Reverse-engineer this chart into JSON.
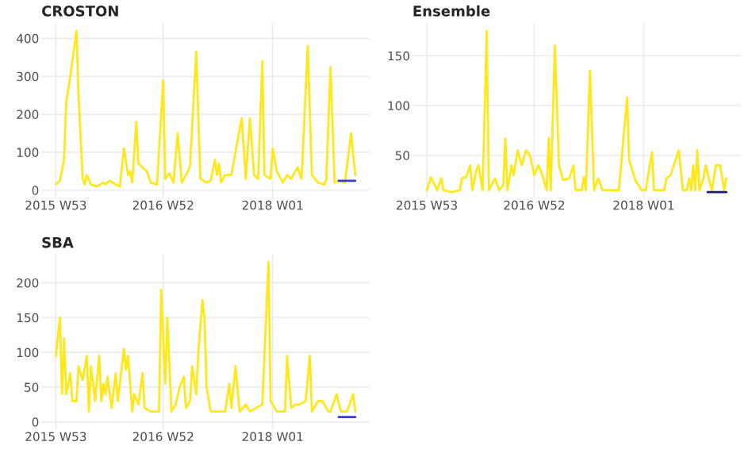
{
  "chart_data": [
    {
      "type": "line",
      "title": "CROSTON",
      "xlim": [
        "2015-11-09",
        "2018-11-26"
      ],
      "ylim": [
        -21,
        441
      ],
      "yticks": [
        0,
        100,
        200,
        300,
        400
      ],
      "xticks": [
        {
          "value": "2015-12-28",
          "label": "2015 W53"
        },
        {
          "value": "2016-12-26",
          "label": "2016 W52"
        },
        {
          "value": "2018-01-01",
          "label": "2018 W01"
        }
      ],
      "grid": true,
      "series": [
        {
          "color": "#ffe81a",
          "x": [
            "2015-12-28",
            "2016-01-11",
            "2016-01-25",
            "2016-02-01",
            "2016-02-15",
            "2016-03-07",
            "2016-03-14",
            "2016-03-28",
            "2016-04-04",
            "2016-04-11",
            "2016-04-25",
            "2016-05-16",
            "2016-06-06",
            "2016-06-13",
            "2016-06-27",
            "2016-07-18",
            "2016-08-01",
            "2016-08-15",
            "2016-08-29",
            "2016-09-05",
            "2016-09-12",
            "2016-09-26",
            "2016-10-03",
            "2016-10-31",
            "2016-11-14",
            "2016-12-05",
            "2016-12-26",
            "2017-01-02",
            "2017-01-16",
            "2017-01-30",
            "2017-02-13",
            "2017-02-27",
            "2017-03-20",
            "2017-03-27",
            "2017-04-17",
            "2017-05-01",
            "2017-05-22",
            "2017-06-05",
            "2017-06-19",
            "2017-06-26",
            "2017-07-03",
            "2017-07-10",
            "2017-07-24",
            "2017-08-14",
            "2017-08-28",
            "2017-09-18",
            "2017-10-02",
            "2017-10-16",
            "2017-10-30",
            "2017-11-13",
            "2017-11-27",
            "2017-12-04",
            "2017-12-25",
            "2018-01-01",
            "2018-01-15",
            "2018-02-05",
            "2018-02-19",
            "2018-03-05",
            "2018-03-26",
            "2018-04-09",
            "2018-04-30",
            "2018-05-14",
            "2018-06-04",
            "2018-06-25",
            "2018-07-02",
            "2018-07-16",
            "2018-07-30",
            "2018-08-13",
            "2018-09-03",
            "2018-09-24",
            "2018-10-08"
          ],
          "values": [
            15,
            25,
            80,
            230,
            300,
            420,
            250,
            30,
            15,
            40,
            15,
            10,
            20,
            15,
            25,
            15,
            10,
            110,
            40,
            50,
            20,
            180,
            70,
            50,
            20,
            15,
            290,
            30,
            45,
            20,
            150,
            20,
            50,
            65,
            365,
            30,
            20,
            25,
            80,
            40,
            70,
            20,
            40,
            40,
            100,
            190,
            30,
            190,
            40,
            30,
            340,
            40,
            30,
            110,
            50,
            20,
            40,
            30,
            60,
            30,
            380,
            40,
            20,
            15,
            30,
            325,
            20,
            25,
            20,
            150,
            40
          ]
        },
        {
          "color": "#3a3ad6",
          "x": [
            "2018-08-13",
            "2018-10-08"
          ],
          "values": [
            25,
            25
          ]
        }
      ]
    },
    {
      "type": "line",
      "title": "Ensemble",
      "xlim": [
        "2015-11-09",
        "2018-11-26"
      ],
      "ylim": [
        7,
        183
      ],
      "yticks": [
        50,
        100,
        150
      ],
      "xticks": [
        {
          "value": "2015-12-28",
          "label": "2015 W53"
        },
        {
          "value": "2016-12-26",
          "label": "2016 W52"
        },
        {
          "value": "2018-01-01",
          "label": "2018 W01"
        }
      ],
      "grid": true,
      "series": [
        {
          "color": "#ffe81a",
          "x": [
            "2015-12-28",
            "2016-01-11",
            "2016-02-01",
            "2016-02-15",
            "2016-02-22",
            "2016-03-21",
            "2016-04-18",
            "2016-04-25",
            "2016-05-09",
            "2016-05-23",
            "2016-05-30",
            "2016-06-13",
            "2016-06-20",
            "2016-07-04",
            "2016-07-18",
            "2016-07-25",
            "2016-08-15",
            "2016-08-29",
            "2016-09-12",
            "2016-09-19",
            "2016-09-26",
            "2016-10-10",
            "2016-10-17",
            "2016-10-31",
            "2016-11-14",
            "2016-11-28",
            "2016-12-12",
            "2016-12-26",
            "2017-01-09",
            "2017-01-23",
            "2017-02-06",
            "2017-02-13",
            "2017-02-20",
            "2017-03-06",
            "2017-03-20",
            "2017-04-03",
            "2017-04-24",
            "2017-05-08",
            "2017-05-15",
            "2017-06-05",
            "2017-06-12",
            "2017-06-19",
            "2017-07-03",
            "2017-07-17",
            "2017-07-31",
            "2017-08-14",
            "2017-09-04",
            "2017-10-09",
            "2017-11-06",
            "2017-11-13",
            "2017-12-04",
            "2017-12-25",
            "2018-01-08",
            "2018-01-29",
            "2018-02-05",
            "2018-03-12",
            "2018-03-19",
            "2018-04-02",
            "2018-04-30",
            "2018-05-14",
            "2018-05-28",
            "2018-06-04",
            "2018-06-11",
            "2018-06-18",
            "2018-06-25",
            "2018-07-02",
            "2018-07-09",
            "2018-07-23",
            "2018-07-30",
            "2018-08-20",
            "2018-09-03",
            "2018-09-17",
            "2018-10-01",
            "2018-10-08"
          ],
          "values": [
            15,
            28,
            15,
            27,
            15,
            13,
            15,
            27,
            28,
            40,
            15,
            35,
            40,
            15,
            175,
            15,
            27,
            15,
            20,
            67,
            15,
            40,
            30,
            55,
            40,
            55,
            50,
            30,
            40,
            30,
            15,
            67,
            15,
            160,
            40,
            25,
            27,
            40,
            15,
            15,
            28,
            15,
            135,
            15,
            27,
            15,
            15,
            15,
            108,
            45,
            25,
            15,
            15,
            53,
            15,
            15,
            27,
            30,
            55,
            15,
            15,
            27,
            15,
            40,
            15,
            55,
            15,
            27,
            40,
            15,
            40,
            40,
            15,
            27
          ]
        },
        {
          "color": "#1c1c6b",
          "x": [
            "2018-08-06",
            "2018-10-08"
          ],
          "values": [
            13,
            13
          ]
        }
      ]
    },
    {
      "type": "line",
      "title": "SBA",
      "xlim": [
        "2015-11-09",
        "2018-11-26"
      ],
      "ylim": [
        -11,
        241
      ],
      "yticks": [
        0,
        50,
        100,
        150,
        200
      ],
      "xticks": [
        {
          "value": "2015-12-28",
          "label": "2015 W53"
        },
        {
          "value": "2016-12-26",
          "label": "2016 W52"
        },
        {
          "value": "2018-01-01",
          "label": "2018 W01"
        }
      ],
      "grid": true,
      "series": [
        {
          "color": "#ffe81a",
          "x": [
            "2015-12-28",
            "2016-01-11",
            "2016-01-18",
            "2016-01-25",
            "2016-02-01",
            "2016-02-15",
            "2016-02-22",
            "2016-03-07",
            "2016-03-14",
            "2016-03-28",
            "2016-04-11",
            "2016-04-18",
            "2016-04-25",
            "2016-05-09",
            "2016-05-23",
            "2016-05-30",
            "2016-06-06",
            "2016-06-13",
            "2016-06-20",
            "2016-07-04",
            "2016-07-18",
            "2016-07-25",
            "2016-08-15",
            "2016-08-22",
            "2016-08-29",
            "2016-09-12",
            "2016-09-19",
            "2016-10-03",
            "2016-10-17",
            "2016-10-24",
            "2016-11-14",
            "2016-12-05",
            "2016-12-12",
            "2016-12-19",
            "2017-01-02",
            "2017-01-09",
            "2017-01-23",
            "2017-02-06",
            "2017-02-20",
            "2017-03-06",
            "2017-03-13",
            "2017-03-27",
            "2017-04-03",
            "2017-04-17",
            "2017-04-24",
            "2017-05-08",
            "2017-05-15",
            "2017-05-22",
            "2017-06-05",
            "2017-07-03",
            "2017-07-24",
            "2017-08-07",
            "2017-08-14",
            "2017-08-28",
            "2017-09-11",
            "2017-10-02",
            "2017-10-16",
            "2017-11-06",
            "2017-11-27",
            "2017-12-18",
            "2017-12-25",
            "2018-01-15",
            "2018-02-12",
            "2018-02-19",
            "2018-03-05",
            "2018-03-19",
            "2018-04-02",
            "2018-04-23",
            "2018-05-07",
            "2018-05-14",
            "2018-06-04",
            "2018-06-18",
            "2018-07-09",
            "2018-07-16",
            "2018-08-06",
            "2018-08-20",
            "2018-09-10",
            "2018-10-01",
            "2018-10-08"
          ],
          "values": [
            95,
            150,
            40,
            120,
            40,
            70,
            30,
            30,
            80,
            60,
            95,
            15,
            80,
            30,
            95,
            30,
            55,
            40,
            65,
            20,
            70,
            30,
            105,
            75,
            95,
            15,
            40,
            25,
            70,
            20,
            15,
            15,
            15,
            190,
            55,
            150,
            15,
            25,
            50,
            65,
            20,
            30,
            80,
            40,
            100,
            175,
            150,
            50,
            15,
            15,
            15,
            55,
            20,
            80,
            15,
            25,
            15,
            20,
            25,
            230,
            30,
            15,
            15,
            95,
            20,
            25,
            25,
            30,
            95,
            15,
            30,
            30,
            15,
            15,
            40,
            15,
            15,
            40,
            15
          ]
        },
        {
          "color": "#3a3ad6",
          "x": [
            "2018-08-13",
            "2018-10-08"
          ],
          "values": [
            7,
            7
          ]
        }
      ]
    }
  ]
}
